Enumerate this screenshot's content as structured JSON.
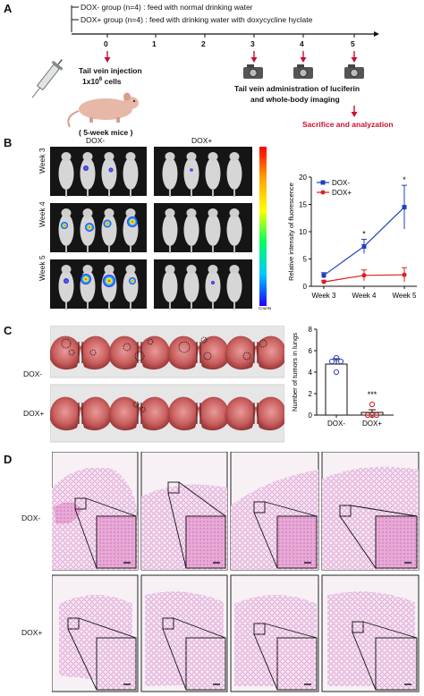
{
  "panel_labels": {
    "a": "A",
    "b": "B",
    "c": "C",
    "d": "D"
  },
  "panel_a": {
    "group_minus": "DOX- group (n=4) : feed with normal drinking water",
    "group_plus": "DOX+ group (n=4) : feed with drinking water with doxycycline hyclate",
    "timeline_ticks": [
      "0",
      "1",
      "2",
      "3",
      "4",
      "5"
    ],
    "injection_line1": "Tail vein injection",
    "injection_line2": "1x10",
    "injection_sup": "6",
    "injection_line2_end": " cells",
    "mice_label": "( 5-week mice )",
    "imaging_line1": "Tail vein administration of luciferin",
    "imaging_line2": "and whole-body imaging",
    "sacrifice": "Sacrifice and analyzation",
    "colors": {
      "arrow": "#c8102e"
    }
  },
  "panel_b": {
    "col_minus": "DOX-",
    "col_plus": "DOX+",
    "rows": [
      "Week 3",
      "Week 4",
      "Week 5"
    ],
    "colorbar_bottom": "Counts"
  },
  "panel_c": {
    "row_minus": "DOX-",
    "row_plus": "DOX+"
  },
  "panel_d": {
    "row_minus": "DOX-",
    "row_plus": "DOX+"
  },
  "chart_data": [
    {
      "type": "line",
      "x": [
        "Week 3",
        "Week 4",
        "Week 5"
      ],
      "ylabel": "Relative intensity of fluorescence",
      "ylim": [
        0,
        20
      ],
      "yticks": [
        "0",
        "5",
        "10",
        "15",
        "20"
      ],
      "legend_position": "top-left",
      "series": [
        {
          "name": "DOX-",
          "values": [
            2.0,
            7.3,
            14.5
          ],
          "error": [
            0.5,
            1.3,
            4.0
          ],
          "color": "#1f3fbf"
        },
        {
          "name": "DOX+",
          "values": [
            0.8,
            2.0,
            2.1
          ],
          "error": [
            0.3,
            1.0,
            1.3
          ],
          "color": "#d92020"
        }
      ],
      "annotations": [
        {
          "x": "Week 4",
          "text": "*"
        },
        {
          "x": "Week 5",
          "text": "*"
        }
      ]
    },
    {
      "type": "bar",
      "categories": [
        "DOX-",
        "DOX+"
      ],
      "values": [
        4.75,
        0.25
      ],
      "error": [
        0.5,
        0.25
      ],
      "points": [
        [
          4.0,
          5.0,
          5.0,
          5.0
        ],
        [
          0.0,
          0.0,
          0.0,
          1.0
        ]
      ],
      "ylabel": "Number of tumors in lungs",
      "ylim": [
        0,
        8
      ],
      "yticks": [
        "0",
        "2",
        "4",
        "6",
        "8"
      ],
      "colors": [
        "#3b4fd1",
        "#d92020"
      ],
      "annotations": [
        {
          "x": "DOX+",
          "text": "***"
        }
      ]
    }
  ]
}
